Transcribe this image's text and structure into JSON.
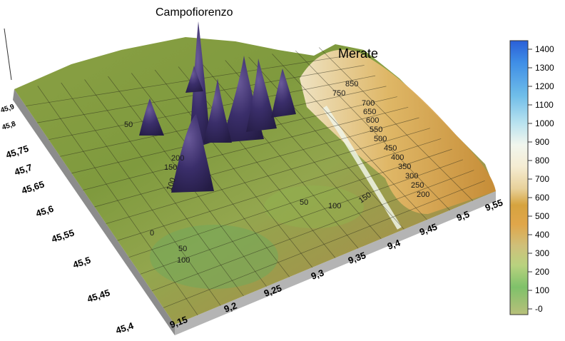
{
  "title": "",
  "places": [
    {
      "name": "Campofiorenzo"
    },
    {
      "name": "Merate"
    }
  ],
  "lon_ticks": [
    "9,15",
    "9,2",
    "9,25",
    "9,3",
    "9,35",
    "9,4",
    "9,45",
    "9,5",
    "9,55"
  ],
  "lat_ticks": [
    "45,4",
    "45,45",
    "45,5",
    "45,55",
    "45,6",
    "45,65",
    "45,7",
    "45,75",
    "45,8",
    "45,9"
  ],
  "contour_labels": [
    "850",
    "750",
    "700",
    "650",
    "600",
    "550",
    "500",
    "450",
    "400",
    "350",
    "300",
    "250",
    "200",
    "150",
    "100",
    "50",
    "200",
    "150",
    "100",
    "50",
    "0",
    "50",
    "100"
  ],
  "colorbar": {
    "ticks": [
      "1400",
      "1300",
      "1200",
      "1100",
      "1000",
      "900",
      "800",
      "700",
      "600",
      "500",
      "400",
      "300",
      "200",
      "100",
      "-0"
    ],
    "stops": [
      "#2a5fd8",
      "#3f8ee6",
      "#6fbde9",
      "#b8e2ef",
      "#f1f6ee",
      "#f5ecd2",
      "#e8d19a",
      "#d6a33f",
      "#e0a64a",
      "#cfc07a",
      "#b9d27f",
      "#7fc16a",
      "#a6c07a"
    ]
  }
}
